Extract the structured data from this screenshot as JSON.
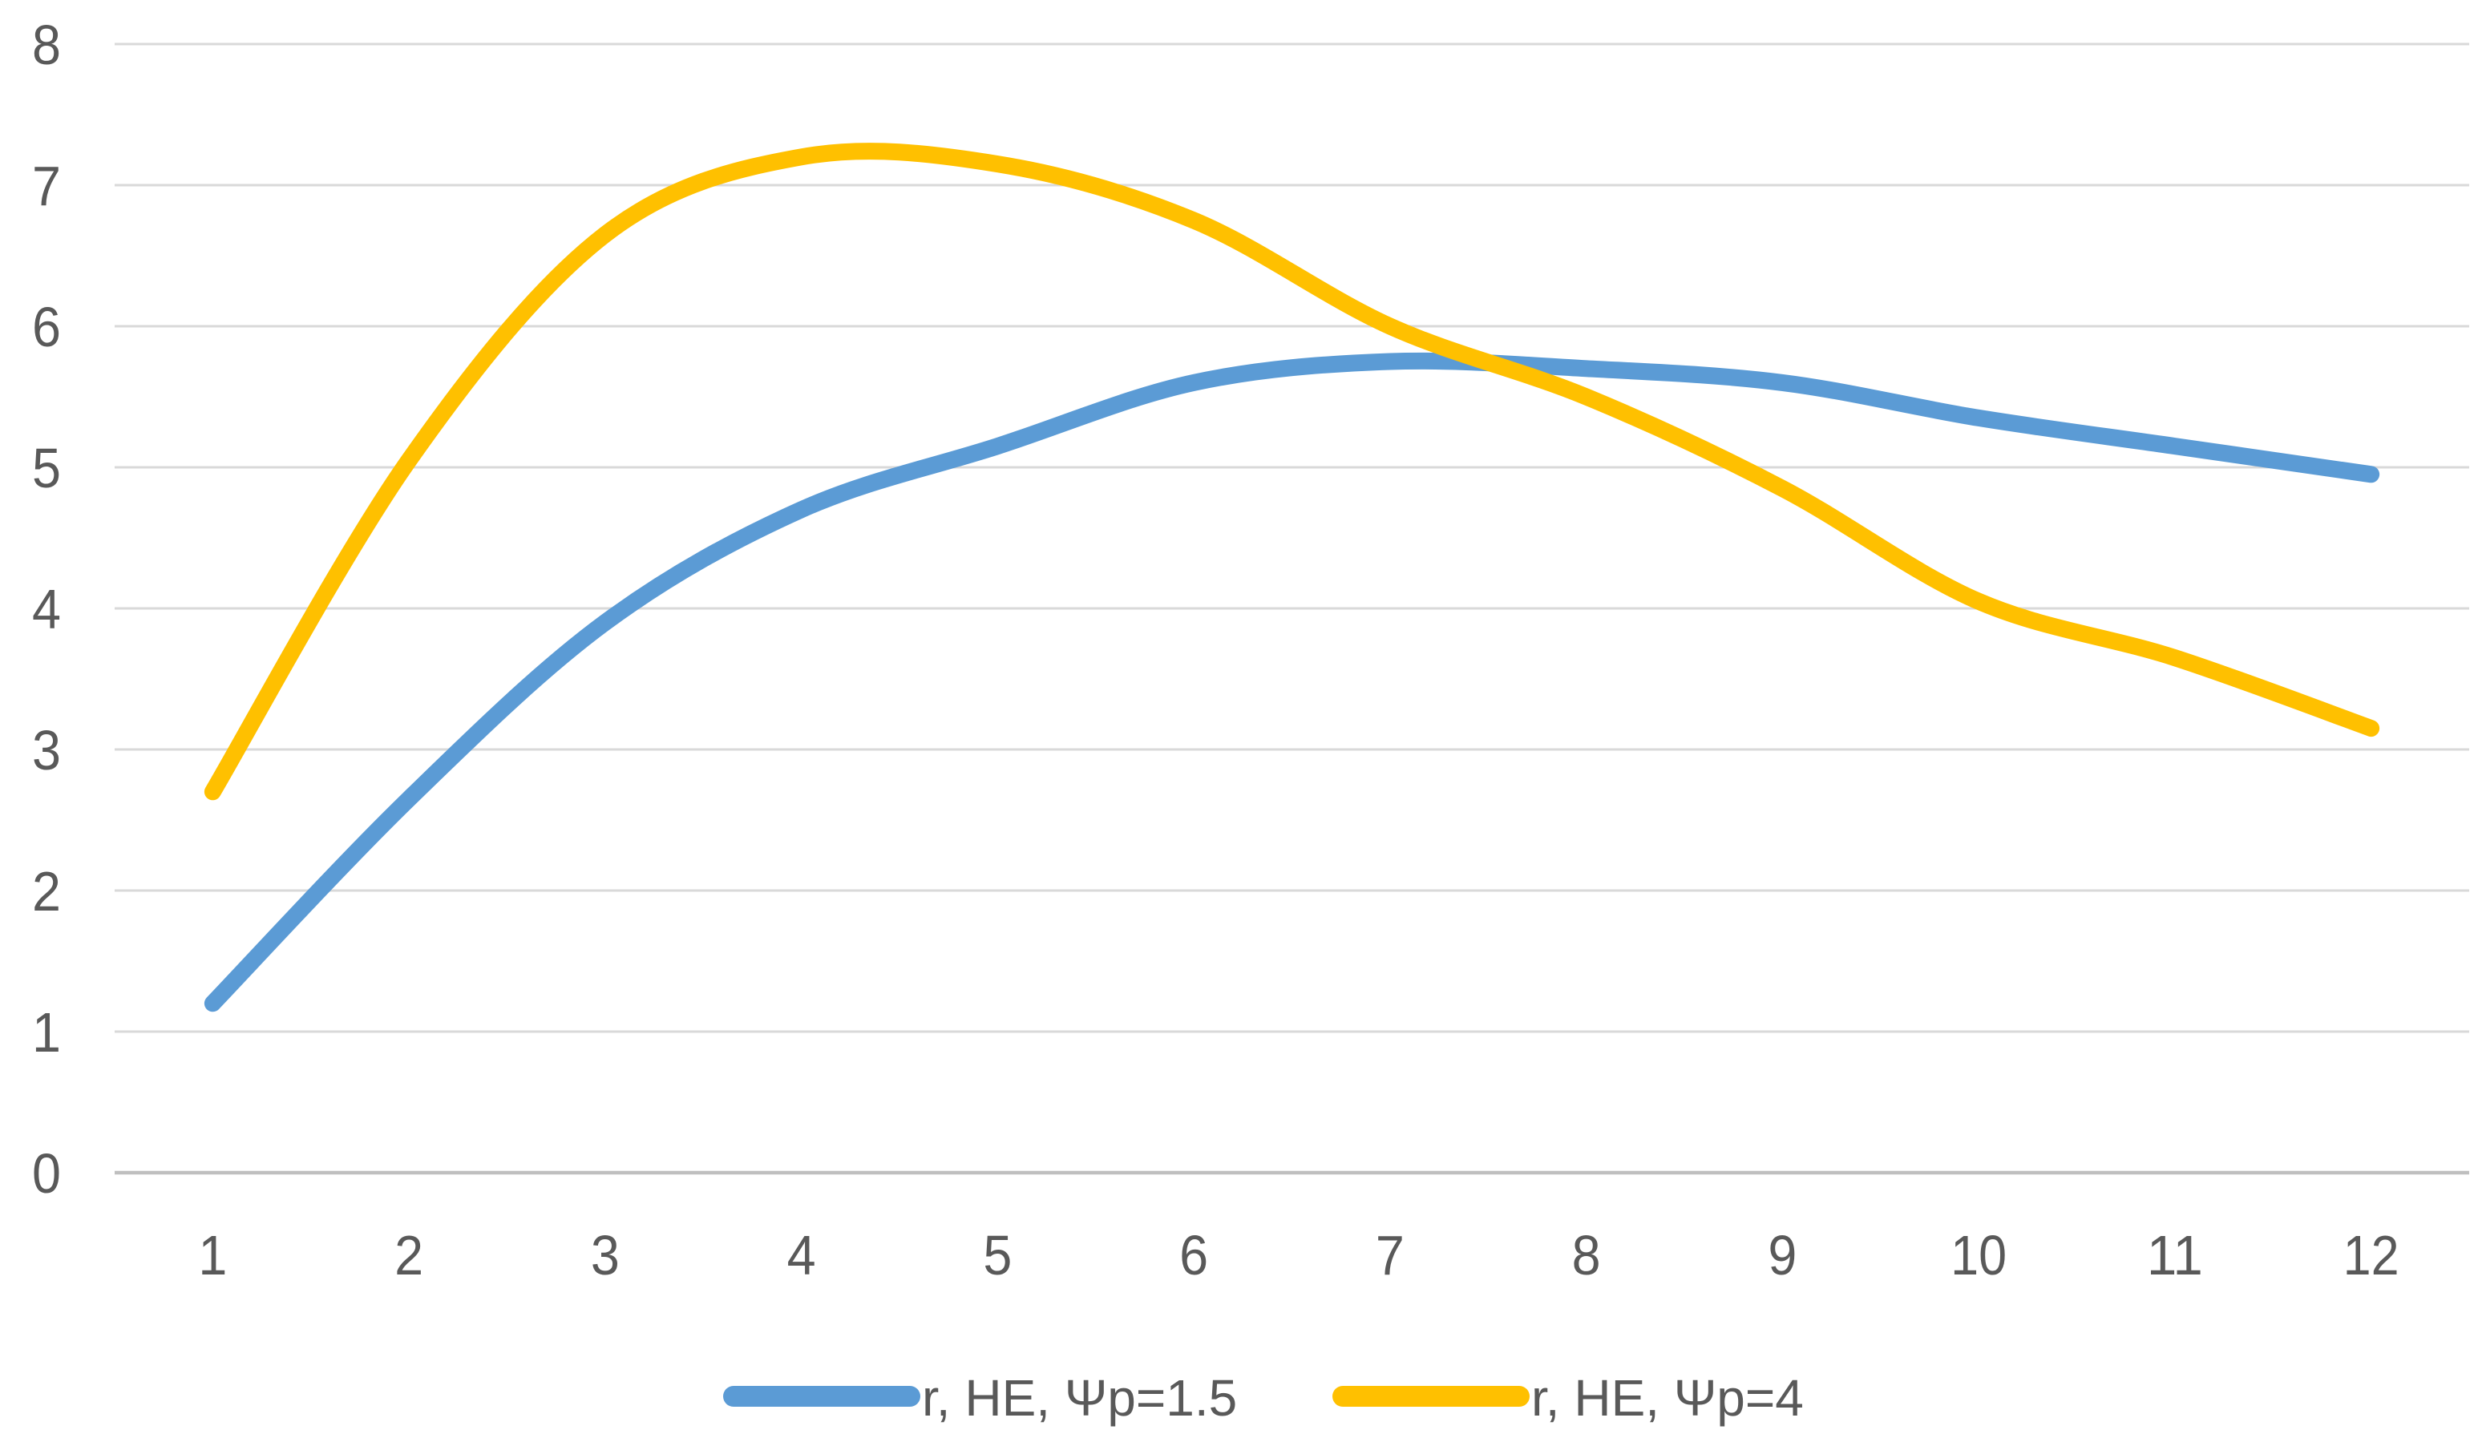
{
  "chart_data": {
    "type": "line",
    "title": "",
    "xlabel": "",
    "ylabel": "",
    "smoothed": true,
    "grid": true,
    "legend_position": "bottom",
    "x": [
      1,
      2,
      3,
      4,
      5,
      6,
      7,
      8,
      9,
      10,
      11,
      12
    ],
    "categories": [
      "1",
      "2",
      "3",
      "4",
      "5",
      "6",
      "7",
      "8",
      "9",
      "10",
      "11",
      "12"
    ],
    "ylim": [
      0,
      8
    ],
    "ytick_step": 1,
    "series": [
      {
        "name": "r, HE, Ψp=1.5",
        "color": "#5B9BD5",
        "values": [
          1.2,
          2.65,
          3.9,
          4.7,
          5.15,
          5.6,
          5.75,
          5.7,
          5.6,
          5.35,
          5.15,
          4.95
        ]
      },
      {
        "name": "r, HE, Ψp=4",
        "color": "#FFC000",
        "values": [
          2.7,
          5.05,
          6.65,
          7.2,
          7.15,
          6.75,
          6.0,
          5.5,
          4.85,
          4.05,
          3.65,
          3.15
        ]
      }
    ]
  },
  "axes": {
    "y_tick_labels": [
      "0",
      "1",
      "2",
      "3",
      "4",
      "5",
      "6",
      "7",
      "8"
    ],
    "x_tick_labels": [
      "1",
      "2",
      "3",
      "4",
      "5",
      "6",
      "7",
      "8",
      "9",
      "10",
      "11",
      "12"
    ]
  },
  "legend": {
    "items": [
      {
        "label": "r, HE, Ψp=1.5",
        "color": "#5B9BD5"
      },
      {
        "label": "r, HE, Ψp=4",
        "color": "#FFC000"
      }
    ]
  },
  "colors": {
    "background": "#FFFFFF",
    "gridline": "#D9D9D9",
    "axis_line": "#BFBFBF",
    "tick_label": "#595959",
    "legend_label": "#595959"
  }
}
